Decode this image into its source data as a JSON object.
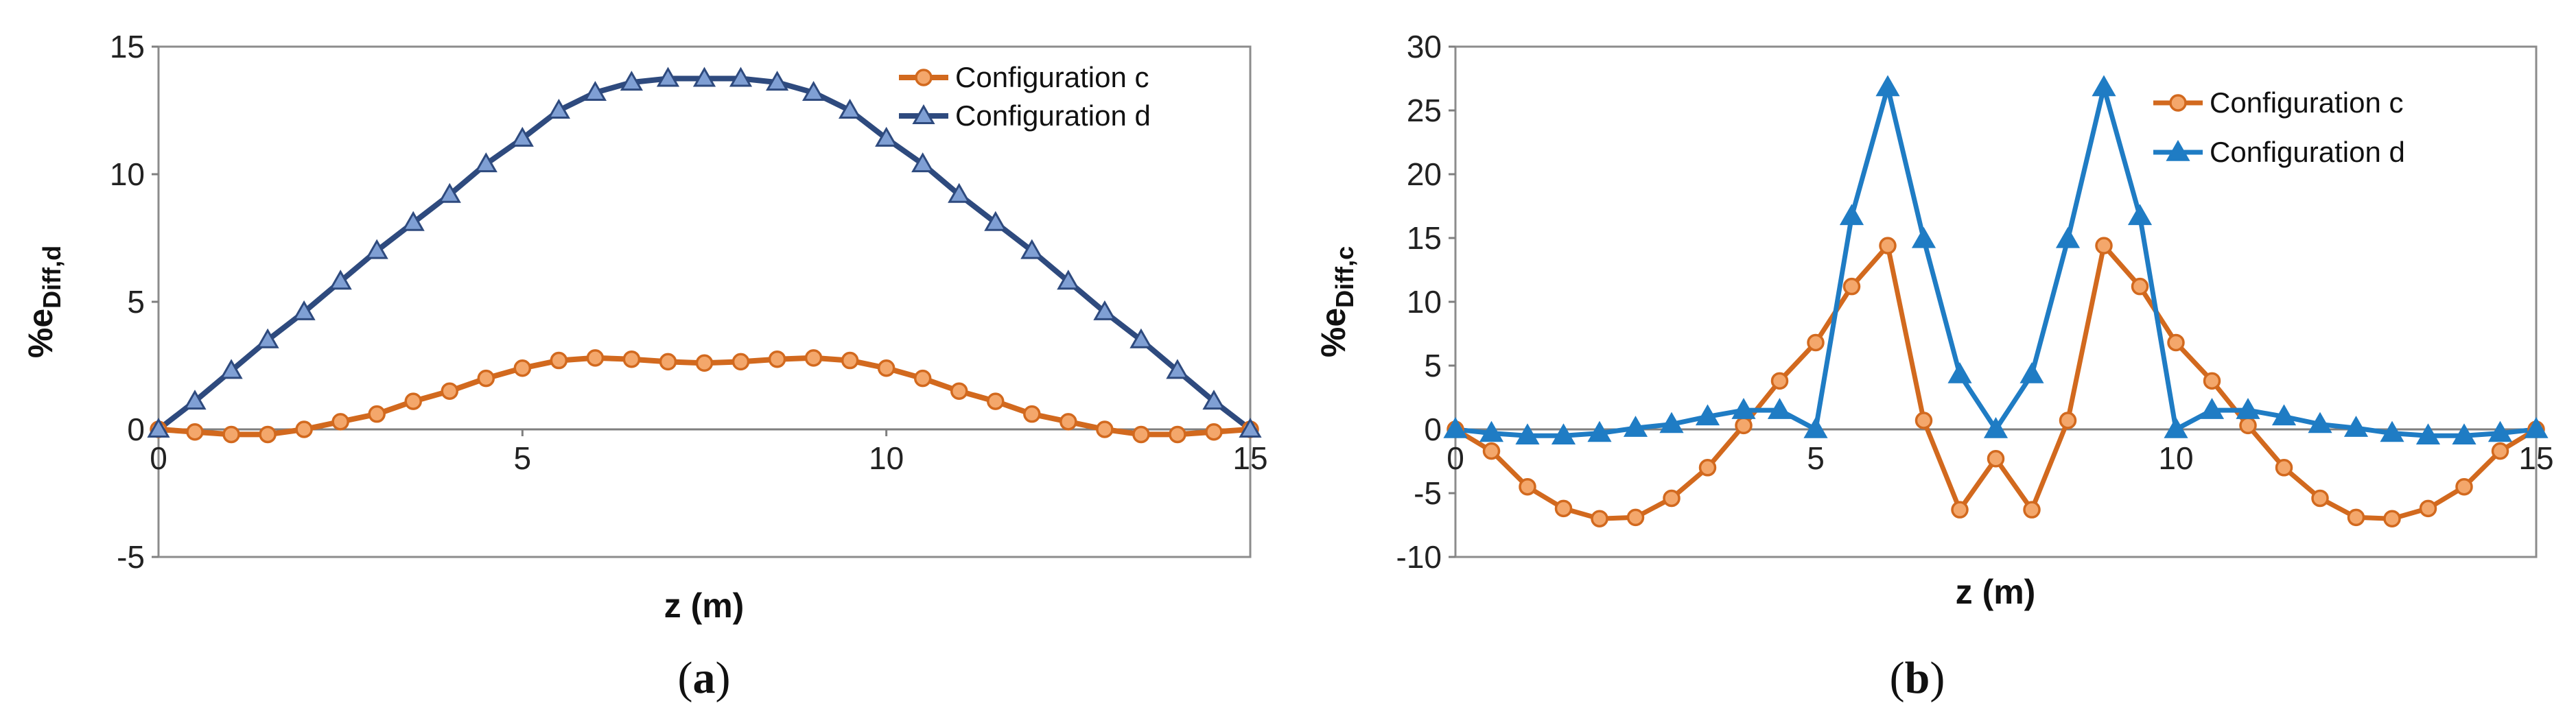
{
  "colors": {
    "config_c_line": "#d2691e",
    "config_c_fill": "#f4a76b",
    "config_d_a_line": "#2e4a7e",
    "config_d_a_fill": "#7f9fd4",
    "config_d_b": "#1f7cc4"
  },
  "chart_data": [
    {
      "type": "line",
      "panel": "(a)",
      "panel_letter": "a",
      "xlabel": "z (m)",
      "ylabel": {
        "main": "%e",
        "sub": "Diff,d"
      },
      "xlim": [
        0,
        15
      ],
      "ylim": [
        -5,
        15
      ],
      "xticks": [
        0,
        5,
        10,
        15
      ],
      "yticks": [
        -5,
        0,
        5,
        10,
        15
      ],
      "legend_position": "top-right",
      "series": [
        {
          "name": "Configuration c",
          "marker": "circle",
          "x": [
            0,
            0.5,
            1,
            1.5,
            2,
            2.5,
            3,
            3.5,
            4,
            4.5,
            5,
            5.5,
            6,
            6.5,
            7,
            7.5,
            8,
            8.5,
            9,
            9.5,
            10,
            10.5,
            11,
            11.5,
            12,
            12.5,
            13,
            13.5,
            14,
            14.5,
            15
          ],
          "y": [
            0,
            -0.1,
            -0.2,
            -0.2,
            0,
            0.3,
            0.6,
            1.1,
            1.5,
            2.0,
            2.4,
            2.7,
            2.8,
            2.75,
            2.65,
            2.6,
            2.65,
            2.75,
            2.8,
            2.7,
            2.4,
            2.0,
            1.5,
            1.1,
            0.6,
            0.3,
            0,
            -0.2,
            -0.2,
            -0.1,
            0
          ]
        },
        {
          "name": "Configuration d",
          "marker": "triangle",
          "x": [
            0,
            0.5,
            1,
            1.5,
            2,
            2.5,
            3,
            3.5,
            4,
            4.5,
            5,
            5.5,
            6,
            6.5,
            7,
            7.5,
            8,
            8.5,
            9,
            9.5,
            10,
            10.5,
            11,
            11.5,
            12,
            12.5,
            13,
            13.5,
            14,
            14.5,
            15
          ],
          "y": [
            0,
            1.1,
            2.3,
            3.5,
            4.6,
            5.8,
            7.0,
            8.1,
            9.2,
            10.4,
            11.4,
            12.5,
            13.2,
            13.6,
            13.75,
            13.75,
            13.75,
            13.6,
            13.2,
            12.5,
            11.4,
            10.4,
            9.2,
            8.1,
            7.0,
            5.8,
            4.6,
            3.5,
            2.3,
            1.1,
            0
          ]
        }
      ]
    },
    {
      "type": "line",
      "panel": "(b)",
      "panel_letter": "b",
      "xlabel": "z (m)",
      "ylabel": {
        "main": "%e",
        "sub": "Diff,c"
      },
      "xlim": [
        0,
        15
      ],
      "ylim": [
        -10,
        30
      ],
      "xticks": [
        0,
        5,
        10,
        15
      ],
      "yticks": [
        -10,
        -5,
        0,
        5,
        10,
        15,
        20,
        25,
        30
      ],
      "legend_position": "top-right",
      "series": [
        {
          "name": "Configuration c",
          "marker": "circle",
          "x": [
            0,
            0.5,
            1,
            1.5,
            2,
            2.5,
            3,
            3.5,
            4,
            4.5,
            5,
            5.5,
            6,
            6.5,
            7,
            7.5,
            8,
            8.5,
            9,
            9.5,
            10,
            10.5,
            11,
            11.5,
            12,
            12.5,
            13,
            13.5,
            14,
            14.5,
            15
          ],
          "y": [
            0,
            -1.7,
            -4.5,
            -6.2,
            -7.0,
            -6.9,
            -5.4,
            -3.0,
            0.3,
            3.8,
            6.8,
            11.2,
            14.4,
            0.7,
            -6.3,
            -2.3,
            -6.3,
            0.7,
            14.4,
            11.2,
            6.8,
            3.8,
            0.3,
            -3.0,
            -5.4,
            -6.9,
            -7.0,
            -6.2,
            -4.5,
            -1.7,
            0
          ]
        },
        {
          "name": "Configuration d",
          "marker": "triangle",
          "x": [
            0,
            0.5,
            1,
            1.5,
            2,
            2.5,
            3,
            3.5,
            4,
            4.5,
            5,
            5.5,
            6,
            6.5,
            7,
            7.5,
            8,
            8.5,
            9,
            9.5,
            10,
            10.5,
            11,
            11.5,
            12,
            12.5,
            13,
            13.5,
            14,
            14.5,
            15
          ],
          "y": [
            0,
            -0.3,
            -0.5,
            -0.5,
            -0.3,
            0.1,
            0.4,
            1.0,
            1.5,
            1.5,
            0,
            16.7,
            26.8,
            14.9,
            4.3,
            0,
            4.3,
            14.9,
            26.8,
            16.7,
            0,
            1.5,
            1.5,
            1.0,
            0.4,
            0.1,
            -0.3,
            -0.5,
            -0.5,
            -0.3,
            0
          ]
        }
      ]
    }
  ]
}
